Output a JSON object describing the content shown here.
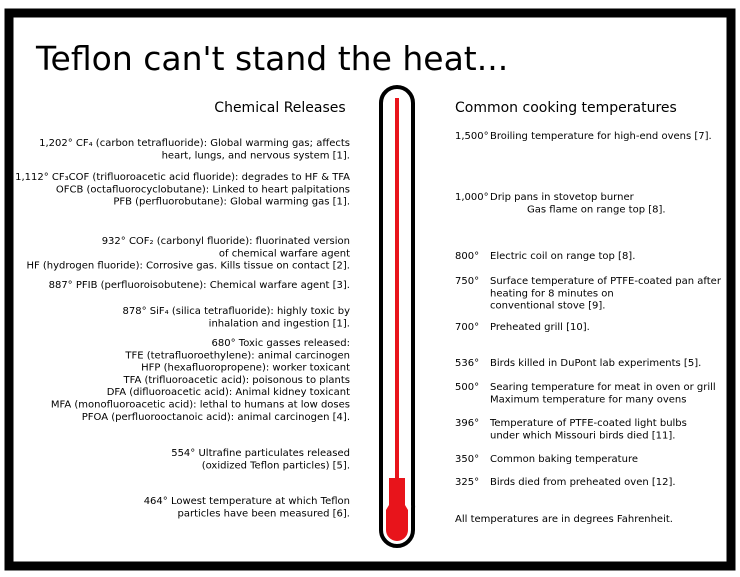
{
  "title": "Teflon can't stand the heat...",
  "chemical_releases": {
    "heading": "Chemical Releases",
    "items": [
      {
        "lines": [
          "1,202° CF₄ (carbon tetrafluoride): Global warming gas; affects",
          "heart, lungs, and nervous system [1]."
        ]
      },
      {
        "lines": [
          "1,112° CF₃COF (trifluoroacetic acid fluoride): degrades to HF & TFA",
          "OFCB (octafluorocyclobutane): Linked to heart palpitations",
          "PFB (perfluorobutane): Global warming gas [1]."
        ]
      },
      {
        "lines": [
          "932° COF₂ (carbonyl fluoride): fluorinated version",
          "of chemical warfare agent",
          "HF (hydrogen fluoride): Corrosive gas. Kills tissue on contact [2]."
        ]
      },
      {
        "lines": [
          "887° PFIB (perfluoroisobutene): Chemical warfare agent [3]."
        ]
      },
      {
        "lines": [
          "878° SiF₄ (silica tetrafluoride): highly toxic by",
          "inhalation and ingestion [1]."
        ]
      },
      {
        "lines": [
          "680° Toxic gasses released:",
          "TFE (tetrafluoroethylene): animal carcinogen",
          "HFP (hexafluoropropene): worker toxicant",
          "TFA (trifluoroacetic acid): poisonous to plants",
          "DFA (difluoroacetic acid): Animal kidney toxicant",
          "MFA (monofluoroacetic acid): lethal to humans at low doses",
          "PFOA (perfluorooctanoic acid): animal carcinogen [4]."
        ]
      },
      {
        "lines": [
          "554° Ultrafine particulates released",
          "(oxidized Teflon particles) [5]."
        ]
      },
      {
        "lines": [
          "464° Lowest temperature at which Teflon",
          "particles have been measured [6]."
        ]
      }
    ]
  },
  "cooking_temperatures": {
    "heading": "Common cooking temperatures",
    "items": [
      {
        "temp": "1,500°",
        "lines": [
          "Broiling temperature for high-end ovens [7]."
        ],
        "color": "#000000"
      },
      {
        "temp": "1,000°",
        "lines": [
          "Drip pans in stovetop burner",
          "Gas flame on range top [8]."
        ],
        "color": "#000000"
      },
      {
        "temp": "800°",
        "lines": [
          "Electric coil on range top [8]."
        ],
        "color": "#000000"
      },
      {
        "temp": "750°",
        "lines": [
          "Surface temperature of PTFE-coated pan after",
          "heating for 8 minutes on",
          "conventional stove [9]."
        ],
        "color": "#000000"
      },
      {
        "temp": "700°",
        "lines": [
          "Preheated grill [10]."
        ],
        "color": "#000000"
      },
      {
        "temp": "536°",
        "lines": [
          "Birds killed in DuPont lab experiments [5]."
        ],
        "color": "#e8141b"
      },
      {
        "temp": "500°",
        "lines": [
          "Searing temperature for meat in oven or grill",
          "Maximum temperature for many ovens"
        ],
        "color": "#000000"
      },
      {
        "temp": "396°",
        "lines": [
          "Temperature of PTFE-coated light bulbs",
          "under which Missouri birds died [11]."
        ],
        "color": "#e8141b"
      },
      {
        "temp": "350°",
        "lines": [
          "Common baking temperature"
        ],
        "color": "#000000"
      },
      {
        "temp": "325°",
        "lines": [
          "Birds died from preheated oven [12]."
        ],
        "color": "#e8141b"
      }
    ],
    "footnote": "All temperatures are in degrees Fahrenheit."
  }
}
